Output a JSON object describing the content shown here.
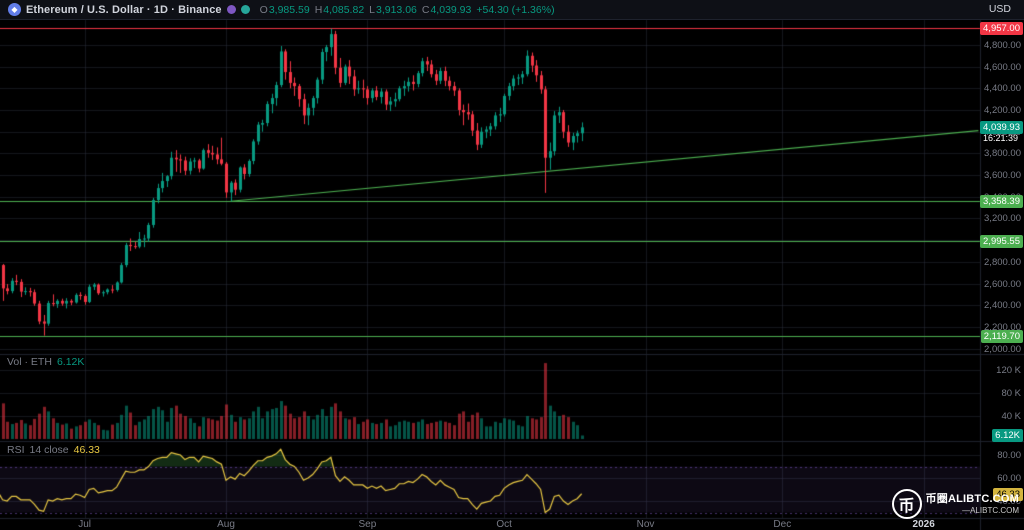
{
  "topbar": {
    "eth_glyph": "◆",
    "symbol_title": "Ethereum / U.S. Dollar · 1D · Binance",
    "ohlc": {
      "o_label": "O",
      "o": "3,985.59",
      "h_label": "H",
      "h": "4,085.82",
      "l_label": "L",
      "l": "3,913.06",
      "c_label": "C",
      "c": "4,039.93",
      "change": "+54.30 (+1.36%)"
    },
    "currency": "USD"
  },
  "colors": {
    "background": "#000000",
    "up": "#089981",
    "down": "#f23645",
    "vol_up": "rgba(8,153,129,0.55)",
    "vol_down": "rgba(242,54,69,0.55)",
    "grid": "rgba(42,46,57,0.5)",
    "separator": "#1e222d",
    "text": "#787b86",
    "text_bright": "#d1d4dc",
    "accent_green_line": "#4caf50",
    "accent_red_line": "#f23645",
    "rsi": "#e8c843",
    "rsi_band_fill": "rgba(126,87,194,0.10)",
    "rsi_band_edge": "rgba(126,87,194,0.55)",
    "rsi_ob_fill": "rgba(76,175,80,0.25)",
    "rsi_os_fill": "rgba(255,82,82,0.25)",
    "eth_logo": "#627eea"
  },
  "volume_legend": {
    "title": "Vol · ETH",
    "value": "6.12K"
  },
  "rsi_legend": {
    "title": "RSI",
    "settings": "14 close",
    "value": "46.33"
  },
  "price_axis": {
    "ticks": [
      "4,800.00",
      "4,600.00",
      "4,400.00",
      "4,200.00",
      "4,000.00",
      "3,800.00",
      "3,600.00",
      "3,400.00",
      "3,200.00",
      "3,000.00",
      "2,800.00",
      "2,600.00",
      "2,400.00",
      "2,200.00",
      "2,000.00"
    ],
    "badges": [
      {
        "label": "4,957.00",
        "color": "#f23645",
        "text_color": "#ffffff",
        "name": "ath-line-price-badge"
      },
      {
        "label": "4,039.93",
        "sub": "16:21:39",
        "color": "#089981",
        "text_color": "#ffffff",
        "name": "last-price-badge"
      },
      {
        "label": "3,358.39",
        "color": "#4caf50",
        "text_color": "#ffffff",
        "name": "support-line-price-badge-1"
      },
      {
        "label": "2,995.55",
        "color": "#4caf50",
        "text_color": "#ffffff",
        "name": "support-line-price-badge-2"
      },
      {
        "label": "2,119.70",
        "color": "#4caf50",
        "text_color": "#ffffff",
        "name": "support-line-price-badge-3"
      }
    ]
  },
  "volume_axis": {
    "ticks": [
      "120 K",
      "80 K",
      "40 K"
    ],
    "badge": {
      "label": "6.12K",
      "color": "#089981",
      "text_color": "#ffffff",
      "name": "volume-value-badge"
    }
  },
  "rsi_axis": {
    "ticks": [
      "80.00",
      "60.00",
      "40.00"
    ],
    "badge": {
      "label": "46.33",
      "color": "#d4b53e",
      "text_color": "#000000",
      "name": "rsi-value-badge"
    }
  },
  "time_axis": {
    "labels": [
      {
        "text": "Jul",
        "day": 19
      },
      {
        "text": "Aug",
        "day": 50
      },
      {
        "text": "Sep",
        "day": 81
      },
      {
        "text": "Oct",
        "day": 111
      },
      {
        "text": "Nov",
        "day": 142
      },
      {
        "text": "Dec",
        "day": 172
      },
      {
        "text": "2026",
        "day": 203,
        "strong": true
      }
    ]
  },
  "watermark": {
    "logo_char": "币",
    "title": "币圈ALIBTC.COM",
    "subtitle": "—ALIBTC.COM"
  },
  "chart_data": {
    "type": "candlestick",
    "symbol": "Ethereum / U.S. Dollar",
    "exchange": "Binance",
    "interval": "1D",
    "indicators": [
      "Volume",
      "RSI 14 close"
    ],
    "start_date": "2025-06-12",
    "end_date": "2025-10-18",
    "last_candle": {
      "open": 3985.59,
      "high": 4085.82,
      "low": 3913.06,
      "close": 4039.93,
      "change": 54.3,
      "change_pct": 1.36,
      "countdown": "16:21:39"
    },
    "price_scale": {
      "view_min": 1950,
      "view_max": 5030,
      "tick_step": 200
    },
    "volume_scale_k": {
      "min": 0,
      "max": 140,
      "last_volume_k": 6.12
    },
    "rsi_scale": {
      "band": [
        30,
        70
      ],
      "last_rsi": 46.33
    },
    "horizontal_lines": [
      {
        "price": 4957.0,
        "color": "#f23645"
      },
      {
        "price": 3358.39,
        "color": "#4caf50"
      },
      {
        "price": 2995.55,
        "color": "#4caf50"
      },
      {
        "price": 2119.7,
        "color": "#4caf50"
      }
    ],
    "trendline": {
      "from_day": 51,
      "from_price": 3358.39,
      "to_day": 215,
      "to_price": 4010,
      "color": "#4caf50"
    },
    "ohlc": [
      [
        2815,
        2830,
        2745,
        2770
      ],
      [
        2770,
        2780,
        2440,
        2555
      ],
      [
        2555,
        2595,
        2500,
        2530
      ],
      [
        2530,
        2650,
        2510,
        2625
      ],
      [
        2625,
        2680,
        2585,
        2615
      ],
      [
        2615,
        2640,
        2475,
        2525
      ],
      [
        2525,
        2565,
        2495,
        2530
      ],
      [
        2530,
        2560,
        2480,
        2520
      ],
      [
        2520,
        2545,
        2395,
        2415
      ],
      [
        2415,
        2440,
        2225,
        2250
      ],
      [
        2250,
        2310,
        2119.7,
        2230
      ],
      [
        2230,
        2440,
        2210,
        2420
      ],
      [
        2420,
        2500,
        2390,
        2410
      ],
      [
        2410,
        2455,
        2375,
        2440
      ],
      [
        2440,
        2460,
        2395,
        2415
      ],
      [
        2415,
        2465,
        2370,
        2440
      ],
      [
        2440,
        2455,
        2400,
        2425
      ],
      [
        2425,
        2510,
        2415,
        2495
      ],
      [
        2495,
        2520,
        2450,
        2485
      ],
      [
        2485,
        2500,
        2405,
        2430
      ],
      [
        2430,
        2590,
        2420,
        2570
      ],
      [
        2570,
        2605,
        2540,
        2590
      ],
      [
        2590,
        2600,
        2495,
        2510
      ],
      [
        2510,
        2535,
        2480,
        2520
      ],
      [
        2520,
        2555,
        2500,
        2545
      ],
      [
        2545,
        2585,
        2510,
        2540
      ],
      [
        2540,
        2620,
        2525,
        2610
      ],
      [
        2610,
        2790,
        2600,
        2770
      ],
      [
        2770,
        2975,
        2750,
        2955
      ],
      [
        2955,
        3015,
        2900,
        2945
      ],
      [
        2945,
        2985,
        2920,
        2940
      ],
      [
        2940,
        3075,
        2925,
        3010
      ],
      [
        3010,
        3050,
        2935,
        3015
      ],
      [
        3015,
        3160,
        2985,
        3140
      ],
      [
        3140,
        3390,
        3115,
        3370
      ],
      [
        3370,
        3520,
        3340,
        3480
      ],
      [
        3480,
        3620,
        3440,
        3545
      ],
      [
        3545,
        3600,
        3490,
        3590
      ],
      [
        3590,
        3815,
        3560,
        3760
      ],
      [
        3760,
        3830,
        3630,
        3745
      ],
      [
        3745,
        3790,
        3620,
        3735
      ],
      [
        3735,
        3770,
        3600,
        3640
      ],
      [
        3640,
        3755,
        3605,
        3725
      ],
      [
        3725,
        3760,
        3665,
        3735
      ],
      [
        3735,
        3750,
        3625,
        3660
      ],
      [
        3660,
        3845,
        3650,
        3830
      ],
      [
        3830,
        3885,
        3760,
        3805
      ],
      [
        3805,
        3870,
        3740,
        3790
      ],
      [
        3790,
        3855,
        3700,
        3745
      ],
      [
        3745,
        3945,
        3690,
        3705
      ],
      [
        3705,
        3720,
        3390,
        3440
      ],
      [
        3440,
        3545,
        3358.39,
        3530
      ],
      [
        3530,
        3560,
        3415,
        3465
      ],
      [
        3465,
        3680,
        3440,
        3670
      ],
      [
        3670,
        3700,
        3560,
        3610
      ],
      [
        3610,
        3745,
        3585,
        3730
      ],
      [
        3730,
        3930,
        3700,
        3910
      ],
      [
        3910,
        4090,
        3880,
        4065
      ],
      [
        4065,
        4110,
        4000,
        4080
      ],
      [
        4080,
        4280,
        4050,
        4255
      ],
      [
        4255,
        4350,
        4170,
        4310
      ],
      [
        4310,
        4460,
        4240,
        4430
      ],
      [
        4430,
        4790,
        4410,
        4740
      ],
      [
        4740,
        4760,
        4480,
        4550
      ],
      [
        4550,
        4650,
        4400,
        4450
      ],
      [
        4450,
        4500,
        4330,
        4420
      ],
      [
        4420,
        4440,
        4230,
        4300
      ],
      [
        4300,
        4350,
        4070,
        4150
      ],
      [
        4150,
        4260,
        4060,
        4220
      ],
      [
        4220,
        4330,
        4150,
        4310
      ],
      [
        4310,
        4500,
        4260,
        4480
      ],
      [
        4480,
        4765,
        4440,
        4735
      ],
      [
        4735,
        4800,
        4650,
        4780
      ],
      [
        4780,
        4950,
        4700,
        4900
      ],
      [
        4900,
        4930,
        4530,
        4590
      ],
      [
        4590,
        4680,
        4410,
        4450
      ],
      [
        4450,
        4620,
        4430,
        4600
      ],
      [
        4600,
        4660,
        4440,
        4510
      ],
      [
        4510,
        4570,
        4330,
        4390
      ],
      [
        4390,
        4470,
        4350,
        4400
      ],
      [
        4400,
        4480,
        4310,
        4390
      ],
      [
        4390,
        4420,
        4250,
        4310
      ],
      [
        4310,
        4400,
        4270,
        4380
      ],
      [
        4380,
        4420,
        4290,
        4320
      ],
      [
        4320,
        4400,
        4260,
        4370
      ],
      [
        4370,
        4390,
        4200,
        4250
      ],
      [
        4250,
        4320,
        4190,
        4280
      ],
      [
        4280,
        4360,
        4230,
        4300
      ],
      [
        4300,
        4420,
        4280,
        4400
      ],
      [
        4400,
        4470,
        4330,
        4420
      ],
      [
        4420,
        4500,
        4370,
        4460
      ],
      [
        4460,
        4520,
        4380,
        4440
      ],
      [
        4440,
        4560,
        4410,
        4540
      ],
      [
        4540,
        4680,
        4510,
        4650
      ],
      [
        4650,
        4690,
        4560,
        4620
      ],
      [
        4620,
        4660,
        4500,
        4530
      ],
      [
        4530,
        4570,
        4430,
        4470
      ],
      [
        4470,
        4590,
        4440,
        4560
      ],
      [
        4560,
        4600,
        4420,
        4470
      ],
      [
        4470,
        4510,
        4380,
        4420
      ],
      [
        4420,
        4460,
        4330,
        4380
      ],
      [
        4380,
        4400,
        4150,
        4200
      ],
      [
        4200,
        4250,
        4060,
        4180
      ],
      [
        4180,
        4260,
        4110,
        4160
      ],
      [
        4160,
        4190,
        3960,
        4010
      ],
      [
        4010,
        4080,
        3830,
        3880
      ],
      [
        3880,
        4040,
        3850,
        4000
      ],
      [
        4000,
        4050,
        3940,
        4020
      ],
      [
        4020,
        4080,
        3960,
        4050
      ],
      [
        4050,
        4180,
        4020,
        4150
      ],
      [
        4150,
        4220,
        4090,
        4160
      ],
      [
        4160,
        4350,
        4140,
        4330
      ],
      [
        4330,
        4450,
        4290,
        4420
      ],
      [
        4420,
        4520,
        4380,
        4490
      ],
      [
        4490,
        4530,
        4430,
        4500
      ],
      [
        4500,
        4560,
        4440,
        4530
      ],
      [
        4530,
        4750,
        4510,
        4700
      ],
      [
        4700,
        4730,
        4550,
        4610
      ],
      [
        4610,
        4660,
        4460,
        4520
      ],
      [
        4520,
        4560,
        4350,
        4390
      ],
      [
        4390,
        4420,
        3436,
        3760
      ],
      [
        3760,
        3900,
        3650,
        3820
      ],
      [
        3820,
        4190,
        3780,
        4150
      ],
      [
        4150,
        4230,
        4080,
        4180
      ],
      [
        4180,
        4200,
        3940,
        4000
      ],
      [
        4000,
        4060,
        3860,
        3900
      ],
      [
        3900,
        3990,
        3830,
        3960
      ],
      [
        3960,
        4010,
        3900,
        3985.63
      ],
      [
        3985.59,
        4085.82,
        3913.06,
        4039.93
      ]
    ],
    "volume_k": [
      38,
      62,
      30,
      26,
      28,
      33,
      27,
      24,
      35,
      44,
      56,
      48,
      36,
      28,
      25,
      27,
      18,
      22,
      24,
      30,
      34,
      28,
      24,
      16,
      15,
      25,
      28,
      42,
      58,
      46,
      24,
      30,
      34,
      40,
      52,
      56,
      50,
      30,
      54,
      58,
      44,
      40,
      36,
      28,
      22,
      38,
      36,
      34,
      32,
      40,
      60,
      42,
      30,
      38,
      34,
      36,
      48,
      56,
      36,
      48,
      52,
      54,
      66,
      58,
      44,
      36,
      38,
      48,
      40,
      34,
      42,
      52,
      40,
      56,
      62,
      48,
      36,
      34,
      38,
      26,
      30,
      34,
      28,
      26,
      28,
      34,
      22,
      24,
      30,
      32,
      30,
      28,
      30,
      34,
      26,
      28,
      30,
      32,
      30,
      28,
      24,
      44,
      48,
      30,
      42,
      46,
      36,
      22,
      22,
      30,
      28,
      36,
      34,
      32,
      24,
      22,
      40,
      36,
      34,
      38,
      132,
      58,
      48,
      40,
      42,
      38,
      30,
      24,
      6.12
    ],
    "rsi_14": [
      48,
      41,
      40,
      44,
      44,
      41,
      41,
      41,
      37,
      32,
      31,
      41,
      40,
      42,
      41,
      42,
      42,
      46,
      45,
      43,
      50,
      51,
      47,
      48,
      49,
      49,
      52,
      59,
      66,
      65,
      65,
      67,
      67,
      70,
      75,
      77,
      78,
      78,
      82,
      81,
      80,
      76,
      78,
      78,
      74,
      79,
      78,
      77,
      74,
      72,
      58,
      61,
      59,
      64,
      62,
      66,
      71,
      75,
      75,
      78,
      79,
      81,
      85,
      76,
      72,
      70,
      65,
      58,
      60,
      63,
      68,
      74,
      75,
      78,
      62,
      57,
      61,
      58,
      54,
      54,
      54,
      51,
      53,
      51,
      53,
      49,
      50,
      51,
      55,
      55,
      57,
      56,
      59,
      63,
      61,
      57,
      54,
      58,
      54,
      52,
      50,
      43,
      42,
      42,
      37,
      33,
      38,
      39,
      40,
      44,
      45,
      51,
      54,
      56,
      57,
      58,
      63,
      59,
      55,
      50,
      30,
      33,
      44,
      45,
      40,
      37,
      40,
      42,
      46.33
    ]
  }
}
